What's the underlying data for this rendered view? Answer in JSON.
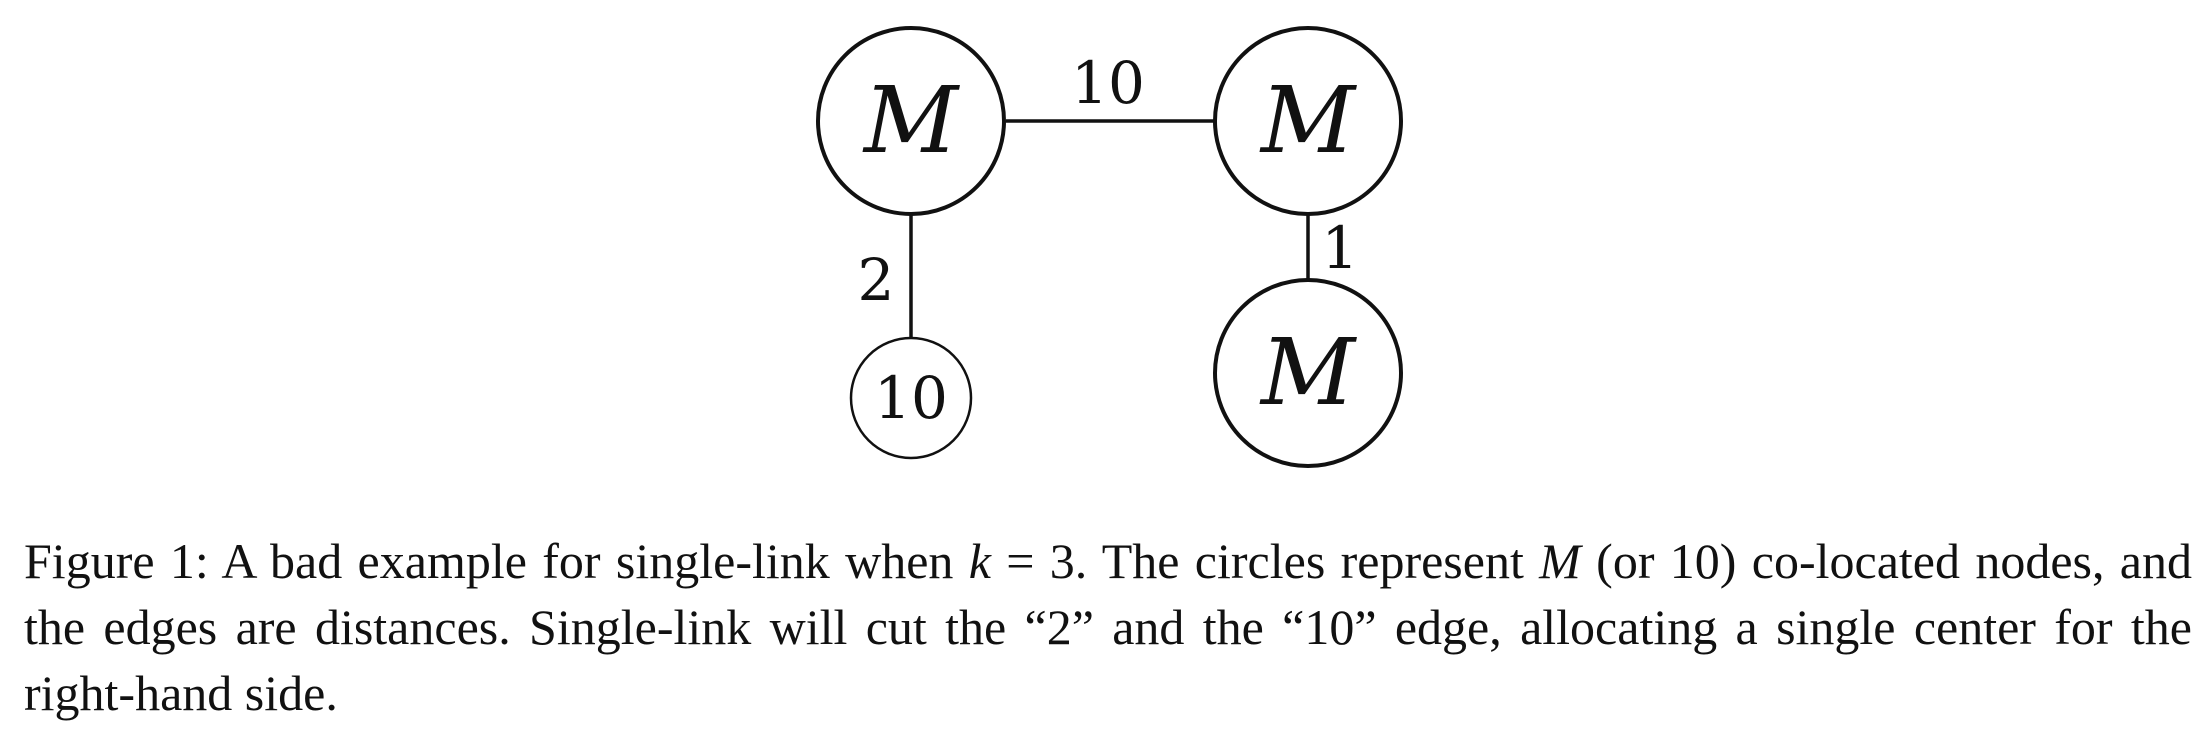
{
  "diagram": {
    "nodes": {
      "top_left": "M",
      "top_right": "M",
      "bottom_right": "M",
      "bottom_left": "10"
    },
    "edges": {
      "top": "10",
      "left": "2",
      "right": "1"
    }
  },
  "caption": {
    "prefix": "Figure 1:  A bad example for single-link when ",
    "var_k": "k",
    "eq": " = 3.  The circles represent ",
    "var_m": "M",
    "rest": " (or 10) co-located nodes, and the edges are distances. Single-link will cut the “2” and the “10” edge, allocating a single center for the right-hand side."
  }
}
